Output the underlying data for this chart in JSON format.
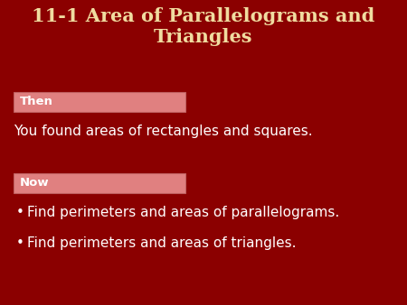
{
  "title": "11-1 Area of Parallelograms and\nTriangles",
  "title_color": "#F0DCA0",
  "bg_color": "#8B0000",
  "then_label": "Then",
  "then_box_color": "#E08080",
  "then_box_edge_color": "#C06060",
  "then_text": "You found areas of rectangles and squares.",
  "now_label": "Now",
  "now_box_color": "#E08080",
  "now_box_edge_color": "#C06060",
  "bullet1": "Find perimeters and areas of parallelograms.",
  "bullet2": "Find perimeters and areas of triangles.",
  "text_color": "#FFFFFF",
  "label_color": "#FFFFFF",
  "title_fontsize": 15,
  "body_fontsize": 11,
  "label_fontsize": 9.5
}
